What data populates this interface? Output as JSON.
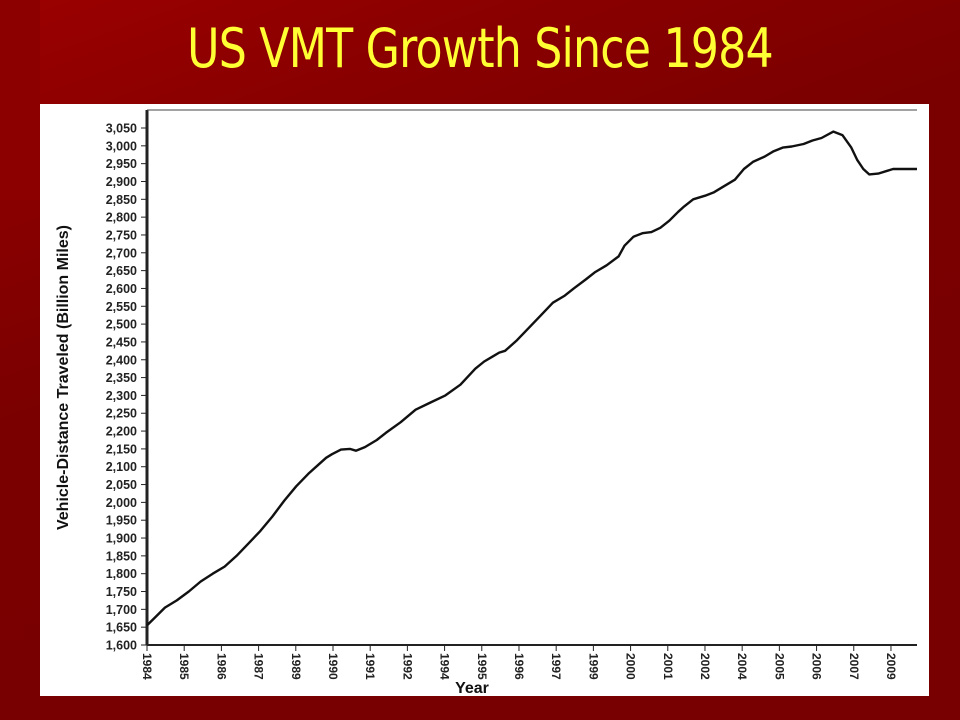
{
  "slide": {
    "title": "US VMT Growth Since 1984"
  },
  "colors": {
    "background": "#7a0000",
    "title": "#ffff33",
    "line": "#111111"
  },
  "chart_data": {
    "type": "line",
    "title": "",
    "xlabel": "Year",
    "ylabel": "Vehicle-Distance Traveled (Billion Miles)",
    "ylim": [
      1600,
      3050
    ],
    "yticks": [
      1600,
      1650,
      1700,
      1750,
      1800,
      1850,
      1900,
      1950,
      2000,
      2050,
      2100,
      2150,
      2200,
      2250,
      2300,
      2350,
      2400,
      2450,
      2500,
      2550,
      2600,
      2650,
      2700,
      2750,
      2800,
      2850,
      2900,
      2950,
      3000,
      3050
    ],
    "xticks": [
      "1984",
      "1985",
      "1986",
      "1987",
      "1989",
      "1990",
      "1991",
      "1992",
      "1994",
      "1995",
      "1996",
      "1997",
      "1999",
      "2000",
      "2001",
      "2002",
      "2004",
      "2005",
      "2006",
      "2007",
      "2009"
    ],
    "grid": false,
    "series": [
      {
        "name": "",
        "x": [
          1984.0,
          1984.3,
          1984.6,
          1985.0,
          1985.4,
          1985.8,
          1986.2,
          1986.6,
          1987.0,
          1987.4,
          1987.8,
          1988.2,
          1988.6,
          1989.0,
          1989.4,
          1989.8,
          1990.0,
          1990.2,
          1990.5,
          1990.8,
          1991.0,
          1991.3,
          1991.7,
          1992.0,
          1992.5,
          1993.0,
          1993.5,
          1994.0,
          1994.5,
          1995.0,
          1995.3,
          1995.6,
          1995.8,
          1996.0,
          1996.4,
          1996.8,
          1997.2,
          1997.6,
          1998.0,
          1998.3,
          1998.7,
          1999.0,
          1999.4,
          1999.8,
          2000.0,
          2000.3,
          2000.6,
          2000.9,
          2001.2,
          2001.5,
          2001.8,
          2002.0,
          2002.3,
          2002.7,
          2003.0,
          2003.3,
          2003.7,
          2004.0,
          2004.3,
          2004.7,
          2005.0,
          2005.3,
          2005.6,
          2006.0,
          2006.3,
          2006.6,
          2007.0,
          2007.3,
          2007.6,
          2007.8,
          2008.0,
          2008.2,
          2008.5,
          2008.8,
          2009.0,
          2009.2,
          2009.5,
          2009.8
        ],
        "values": [
          1655,
          1680,
          1705,
          1725,
          1750,
          1778,
          1800,
          1820,
          1850,
          1885,
          1920,
          1960,
          2005,
          2045,
          2080,
          2110,
          2125,
          2135,
          2148,
          2150,
          2145,
          2155,
          2175,
          2195,
          2225,
          2260,
          2280,
          2300,
          2330,
          2375,
          2395,
          2410,
          2420,
          2425,
          2455,
          2490,
          2525,
          2560,
          2580,
          2600,
          2625,
          2645,
          2665,
          2690,
          2720,
          2745,
          2755,
          2758,
          2770,
          2790,
          2815,
          2830,
          2850,
          2860,
          2870,
          2885,
          2905,
          2935,
          2955,
          2970,
          2985,
          2995,
          2998,
          3005,
          3015,
          3022,
          3040,
          3030,
          2995,
          2960,
          2935,
          2920,
          2922,
          2930,
          2935,
          2935,
          2935,
          2935
        ]
      }
    ]
  }
}
